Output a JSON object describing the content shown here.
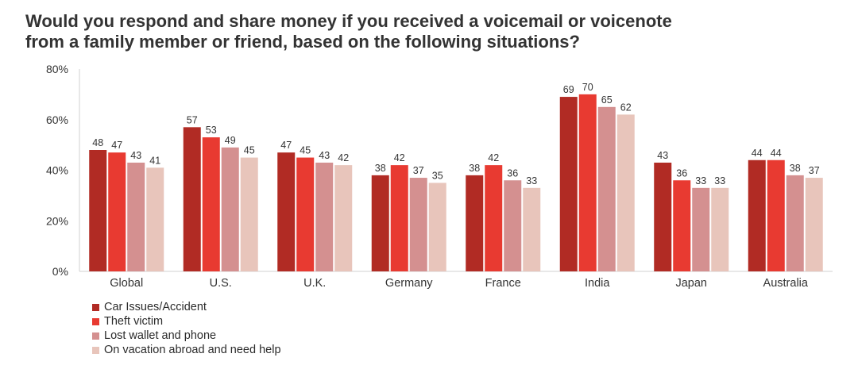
{
  "chart_data": {
    "type": "bar",
    "title_lines": [
      "Would you respond and share money if you received a voicemail or voicenote",
      "from a family member or friend, based on the following situations?"
    ],
    "xlabel": "",
    "ylabel": "",
    "ylim": [
      0,
      80
    ],
    "yticks": [
      0,
      20,
      40,
      60,
      80
    ],
    "ytick_labels": [
      "0%",
      "20%",
      "40%",
      "60%",
      "80%"
    ],
    "grid": false,
    "legend_position": "bottom-left",
    "categories": [
      "Global",
      "U.S.",
      "U.K.",
      "Germany",
      "France",
      "India",
      "Japan",
      "Australia"
    ],
    "series": [
      {
        "name": "Car Issues/Accident",
        "color": "#b12b24",
        "values": [
          48,
          57,
          47,
          38,
          38,
          69,
          43,
          44
        ]
      },
      {
        "name": "Theft victim",
        "color": "#e83a31",
        "values": [
          47,
          53,
          45,
          42,
          42,
          70,
          36,
          44
        ]
      },
      {
        "name": "Lost wallet and phone",
        "color": "#d49090",
        "values": [
          43,
          49,
          43,
          37,
          36,
          65,
          33,
          38
        ]
      },
      {
        "name": "On vacation abroad and need help",
        "color": "#e8c5bb",
        "values": [
          41,
          45,
          42,
          35,
          33,
          62,
          33,
          37
        ]
      }
    ]
  }
}
